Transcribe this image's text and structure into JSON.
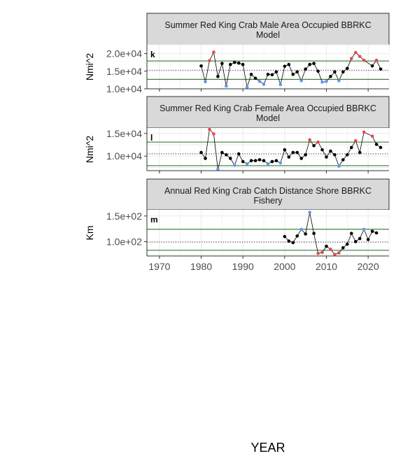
{
  "x_axis_title": "YEAR",
  "colors": {
    "point_normal": "#000000",
    "point_high": "#e8484b",
    "point_low": "#6495ed",
    "mean_line": "#1a1a1a",
    "sd_line": "#1e6e1e",
    "strip_fill": "#d9d9d9",
    "grid": "#ebebeb"
  },
  "chart_data": [
    {
      "type": "line",
      "tag": "k",
      "title_lines": [
        "Summer Red King Crab Male Area Occupied BBRKC",
        "Model"
      ],
      "ylabel": "Nmi^2",
      "xlim": [
        1967,
        2025
      ],
      "ylim": [
        10000,
        22500
      ],
      "x_ticks": [
        1970,
        1980,
        1990,
        2000,
        2010,
        2020
      ],
      "x_tick_labels": [
        "1970",
        "1980",
        "1990",
        "2000",
        "2010",
        "2020"
      ],
      "y_ticks": [
        10000,
        15000,
        20000
      ],
      "y_tick_labels": [
        "1.0e+04",
        "1.5e+04",
        "2.0e+04"
      ],
      "mean": 15300,
      "sd_upper": 17900,
      "sd_lower": 12700,
      "points": [
        {
          "x": 1980,
          "y": 16500,
          "s": "n"
        },
        {
          "x": 1981,
          "y": 12000,
          "s": "l"
        },
        {
          "x": 1982,
          "y": 18000,
          "s": "h"
        },
        {
          "x": 1983,
          "y": 20400,
          "s": "h"
        },
        {
          "x": 1984,
          "y": 13500,
          "s": "n"
        },
        {
          "x": 1985,
          "y": 17200,
          "s": "n"
        },
        {
          "x": 1986,
          "y": 10800,
          "s": "l"
        },
        {
          "x": 1987,
          "y": 16900,
          "s": "n"
        },
        {
          "x": 1988,
          "y": 17500,
          "s": "n"
        },
        {
          "x": 1989,
          "y": 17300,
          "s": "n"
        },
        {
          "x": 1990,
          "y": 16900,
          "s": "n"
        },
        {
          "x": 1991,
          "y": 10500,
          "s": "l"
        },
        {
          "x": 1992,
          "y": 14100,
          "s": "n"
        },
        {
          "x": 1993,
          "y": 13000,
          "s": "n"
        },
        {
          "x": 1994,
          "y": 12100,
          "s": "l"
        },
        {
          "x": 1995,
          "y": 11300,
          "s": "l"
        },
        {
          "x": 1996,
          "y": 14100,
          "s": "n"
        },
        {
          "x": 1997,
          "y": 14000,
          "s": "n"
        },
        {
          "x": 1998,
          "y": 14800,
          "s": "n"
        },
        {
          "x": 1999,
          "y": 11200,
          "s": "l"
        },
        {
          "x": 2000,
          "y": 16400,
          "s": "n"
        },
        {
          "x": 2001,
          "y": 16900,
          "s": "n"
        },
        {
          "x": 2002,
          "y": 14100,
          "s": "n"
        },
        {
          "x": 2003,
          "y": 14800,
          "s": "n"
        },
        {
          "x": 2004,
          "y": 12300,
          "s": "l"
        },
        {
          "x": 2005,
          "y": 15600,
          "s": "n"
        },
        {
          "x": 2006,
          "y": 16900,
          "s": "n"
        },
        {
          "x": 2007,
          "y": 17200,
          "s": "n"
        },
        {
          "x": 2008,
          "y": 15000,
          "s": "n"
        },
        {
          "x": 2009,
          "y": 11900,
          "s": "l"
        },
        {
          "x": 2010,
          "y": 12100,
          "s": "l"
        },
        {
          "x": 2011,
          "y": 13500,
          "s": "n"
        },
        {
          "x": 2012,
          "y": 14800,
          "s": "n"
        },
        {
          "x": 2013,
          "y": 12300,
          "s": "l"
        },
        {
          "x": 2014,
          "y": 14800,
          "s": "n"
        },
        {
          "x": 2015,
          "y": 15800,
          "s": "n"
        },
        {
          "x": 2016,
          "y": 18600,
          "s": "h"
        },
        {
          "x": 2017,
          "y": 20300,
          "s": "h"
        },
        {
          "x": 2018,
          "y": 19200,
          "s": "h"
        },
        {
          "x": 2019,
          "y": 18100,
          "s": "h"
        },
        {
          "x": 2021,
          "y": 16500,
          "s": "n"
        },
        {
          "x": 2022,
          "y": 18100,
          "s": "h"
        },
        {
          "x": 2023,
          "y": 15600,
          "s": "n"
        }
      ]
    },
    {
      "type": "line",
      "tag": "l",
      "title_lines": [
        "Summer Red King Crab Female Area Occupied BBRKC",
        "Model"
      ],
      "ylabel": "Nmi^2",
      "xlim": [
        1967,
        2025
      ],
      "ylim": [
        6800,
        16200
      ],
      "x_ticks": [
        1970,
        1980,
        1990,
        2000,
        2010,
        2020
      ],
      "x_tick_labels": [
        "1970",
        "1980",
        "1990",
        "2000",
        "2010",
        "2020"
      ],
      "y_ticks": [
        10000,
        15000
      ],
      "y_tick_labels": [
        "1.0e+04",
        "1.5e+04"
      ],
      "mean": 10500,
      "sd_upper": 13100,
      "sd_lower": 7900,
      "points": [
        {
          "x": 1980,
          "y": 10800,
          "s": "n"
        },
        {
          "x": 1981,
          "y": 9500,
          "s": "n"
        },
        {
          "x": 1982,
          "y": 15900,
          "s": "h"
        },
        {
          "x": 1983,
          "y": 14900,
          "s": "h"
        },
        {
          "x": 1984,
          "y": 7100,
          "s": "l"
        },
        {
          "x": 1985,
          "y": 10800,
          "s": "n"
        },
        {
          "x": 1986,
          "y": 10300,
          "s": "n"
        },
        {
          "x": 1987,
          "y": 9500,
          "s": "n"
        },
        {
          "x": 1988,
          "y": 8000,
          "s": "l"
        },
        {
          "x": 1989,
          "y": 10500,
          "s": "n"
        },
        {
          "x": 1990,
          "y": 8800,
          "s": "n"
        },
        {
          "x": 1991,
          "y": 8300,
          "s": "l"
        },
        {
          "x": 1992,
          "y": 9000,
          "s": "n"
        },
        {
          "x": 1993,
          "y": 9000,
          "s": "n"
        },
        {
          "x": 1994,
          "y": 9200,
          "s": "n"
        },
        {
          "x": 1995,
          "y": 9000,
          "s": "n"
        },
        {
          "x": 1996,
          "y": 8300,
          "s": "l"
        },
        {
          "x": 1997,
          "y": 8800,
          "s": "n"
        },
        {
          "x": 1998,
          "y": 9000,
          "s": "n"
        },
        {
          "x": 1999,
          "y": 8500,
          "s": "l"
        },
        {
          "x": 2000,
          "y": 11400,
          "s": "n"
        },
        {
          "x": 2001,
          "y": 9800,
          "s": "n"
        },
        {
          "x": 2002,
          "y": 10800,
          "s": "n"
        },
        {
          "x": 2003,
          "y": 10800,
          "s": "n"
        },
        {
          "x": 2004,
          "y": 9500,
          "s": "n"
        },
        {
          "x": 2005,
          "y": 10300,
          "s": "n"
        },
        {
          "x": 2006,
          "y": 13600,
          "s": "h"
        },
        {
          "x": 2007,
          "y": 12300,
          "s": "n"
        },
        {
          "x": 2008,
          "y": 13100,
          "s": "h"
        },
        {
          "x": 2009,
          "y": 11400,
          "s": "n"
        },
        {
          "x": 2010,
          "y": 9800,
          "s": "n"
        },
        {
          "x": 2011,
          "y": 11100,
          "s": "n"
        },
        {
          "x": 2012,
          "y": 10300,
          "s": "n"
        },
        {
          "x": 2013,
          "y": 7800,
          "s": "l"
        },
        {
          "x": 2014,
          "y": 9200,
          "s": "n"
        },
        {
          "x": 2015,
          "y": 10300,
          "s": "n"
        },
        {
          "x": 2016,
          "y": 11900,
          "s": "n"
        },
        {
          "x": 2017,
          "y": 13400,
          "s": "h"
        },
        {
          "x": 2018,
          "y": 10800,
          "s": "n"
        },
        {
          "x": 2019,
          "y": 15300,
          "s": "h"
        },
        {
          "x": 2021,
          "y": 14400,
          "s": "h"
        },
        {
          "x": 2022,
          "y": 12600,
          "s": "n"
        },
        {
          "x": 2023,
          "y": 11900,
          "s": "n"
        }
      ]
    },
    {
      "type": "line",
      "tag": "m",
      "title_lines": [
        "Annual Red King Crab Catch Distance Shore BBRKC",
        "Fishery"
      ],
      "ylabel": "Km",
      "xlim": [
        1967,
        2025
      ],
      "ylim": [
        72,
        162
      ],
      "x_ticks": [
        1970,
        1980,
        1990,
        2000,
        2010,
        2020
      ],
      "x_tick_labels": [
        "1970",
        "1980",
        "1990",
        "2000",
        "2010",
        "2020"
      ],
      "y_ticks": [
        100,
        150
      ],
      "y_tick_labels": [
        "1.0e+02",
        "1.5e+02"
      ],
      "show_x_tick_labels": true,
      "mean": 99,
      "sd_upper": 124,
      "sd_lower": 83,
      "points": [
        {
          "x": 2000,
          "y": 110,
          "s": "n"
        },
        {
          "x": 2001,
          "y": 101,
          "s": "n"
        },
        {
          "x": 2002,
          "y": 98,
          "s": "n"
        },
        {
          "x": 2003,
          "y": 111,
          "s": "n"
        },
        {
          "x": 2004,
          "y": 124,
          "s": "l"
        },
        {
          "x": 2005,
          "y": 115,
          "s": "n"
        },
        {
          "x": 2006,
          "y": 157,
          "s": "l"
        },
        {
          "x": 2007,
          "y": 116,
          "s": "n"
        },
        {
          "x": 2008,
          "y": 77,
          "s": "h"
        },
        {
          "x": 2009,
          "y": 79,
          "s": "h"
        },
        {
          "x": 2010,
          "y": 91,
          "s": "n"
        },
        {
          "x": 2011,
          "y": 85,
          "s": "h"
        },
        {
          "x": 2012,
          "y": 75,
          "s": "h"
        },
        {
          "x": 2013,
          "y": 78,
          "s": "h"
        },
        {
          "x": 2014,
          "y": 88,
          "s": "n"
        },
        {
          "x": 2015,
          "y": 95,
          "s": "n"
        },
        {
          "x": 2016,
          "y": 116,
          "s": "n"
        },
        {
          "x": 2017,
          "y": 100,
          "s": "n"
        },
        {
          "x": 2018,
          "y": 106,
          "s": "n"
        },
        {
          "x": 2019,
          "y": 124,
          "s": "l"
        },
        {
          "x": 2020,
          "y": 104,
          "s": "n"
        },
        {
          "x": 2021,
          "y": 120,
          "s": "n"
        },
        {
          "x": 2022,
          "y": 117,
          "s": "n"
        }
      ]
    }
  ]
}
